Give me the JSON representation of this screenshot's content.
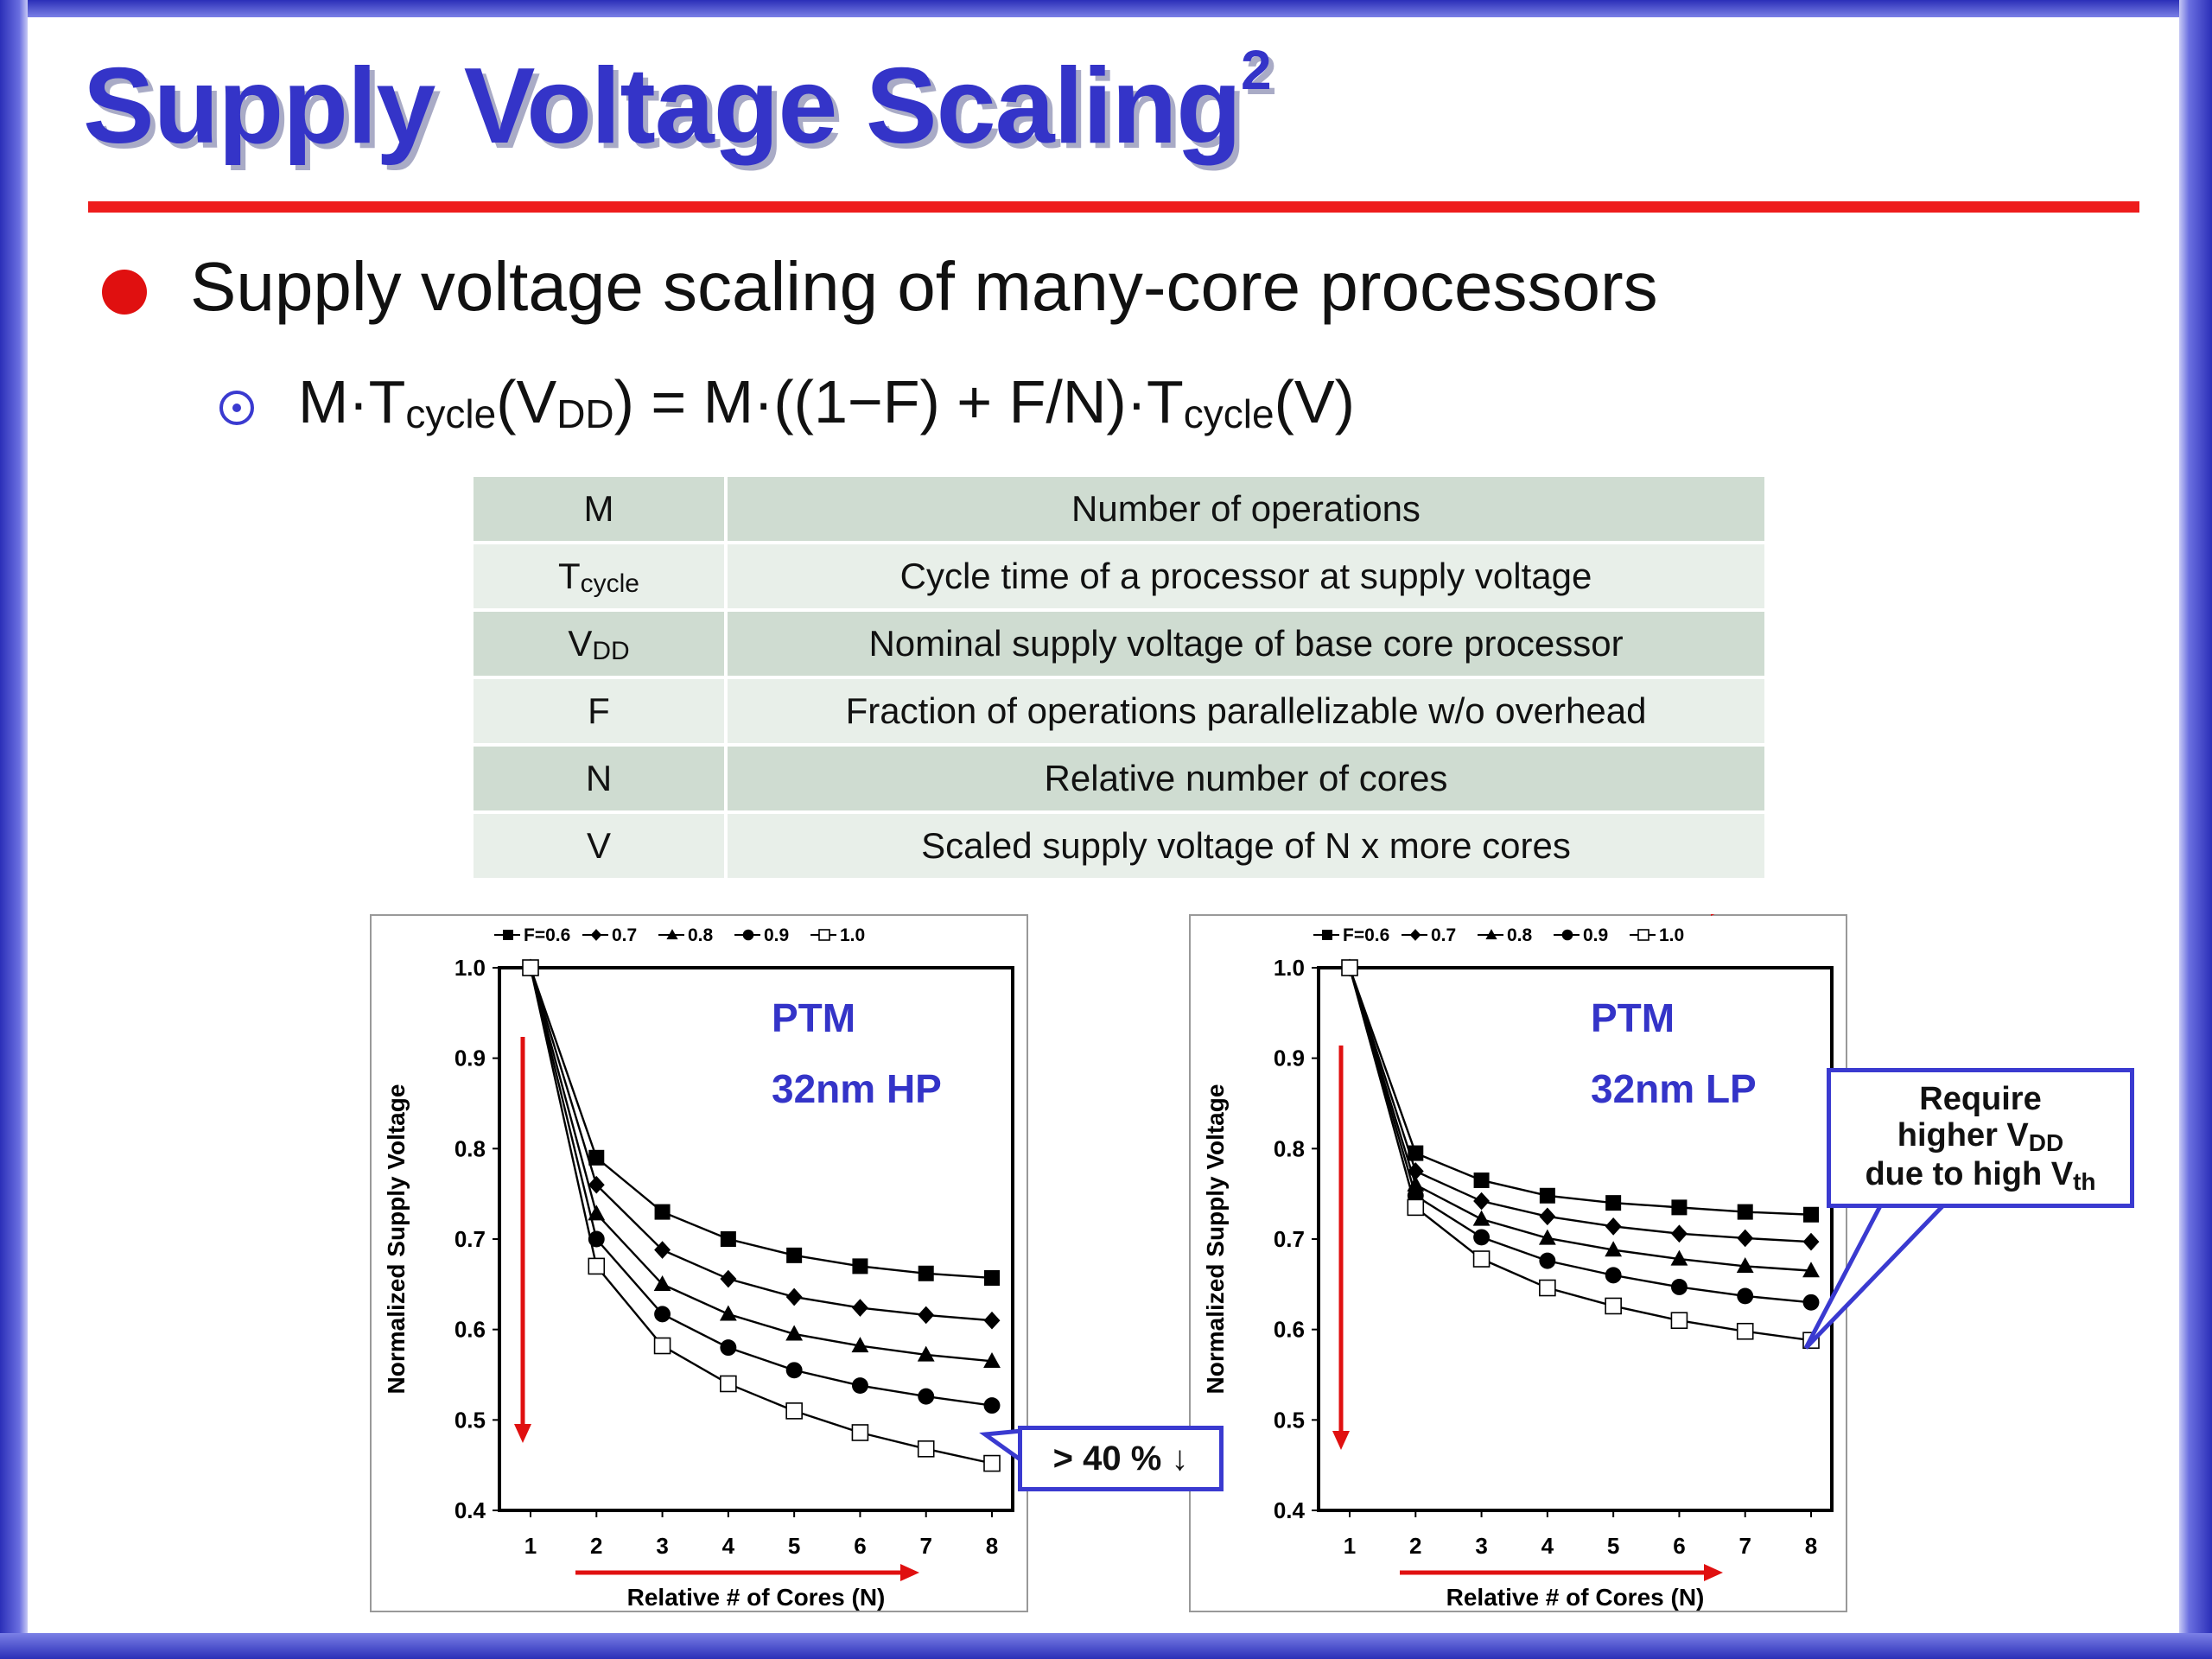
{
  "slide": {
    "title": "Supply Voltage Scaling",
    "title_sup": "2",
    "bullet": "Supply voltage scaling of many-core processors",
    "formula": {
      "a": "M·T",
      "a_sub": "cycle",
      "b": "(V",
      "b_sub": "DD",
      "c": ") = M·((1−F) + F/N)·T",
      "c_sub": "cycle",
      "d": "(V)"
    }
  },
  "definitions": [
    {
      "symbol": "M",
      "symbol_sub": "",
      "meaning": "Number of operations"
    },
    {
      "symbol": "T",
      "symbol_sub": "cycle",
      "meaning": "Cycle time of a processor at supply voltage"
    },
    {
      "symbol": "V",
      "symbol_sub": "DD",
      "meaning": "Nominal supply voltage of base core processor"
    },
    {
      "symbol": "F",
      "symbol_sub": "",
      "meaning": "Fraction of operations parallelizable w/o overhead"
    },
    {
      "symbol": "N",
      "symbol_sub": "",
      "meaning": "Relative number of cores"
    },
    {
      "symbol": "V",
      "symbol_sub": "",
      "meaning": "Scaled supply voltage of N x more cores"
    }
  ],
  "annotations": {
    "drop_label": "> 40 % ↓",
    "require_line1": "Require",
    "require_line2a": "higher V",
    "require_line2_sub": "DD",
    "require_line3a": "due to high V",
    "require_line3_sub": "th"
  },
  "colors": {
    "title": "#3434c8",
    "rule": "#ee1c1c",
    "arrow": "#e01010",
    "callout": "#3a3ad0",
    "table_dark": "#cfdcd1",
    "table_light": "#e8efe9"
  },
  "chart_data": [
    {
      "type": "line",
      "title": "",
      "labels": [
        "PTM",
        "32nm HP"
      ],
      "xlabel": "Relative # of Cores (N)",
      "ylabel": "Normalized Supply Voltage",
      "x": [
        1,
        2,
        3,
        4,
        5,
        6,
        7,
        8
      ],
      "xticks": [
        "1",
        "2",
        "3",
        "4",
        "5",
        "6",
        "7",
        "8"
      ],
      "ylim": [
        0.4,
        1.0
      ],
      "yticks": [
        "0.4",
        "0.5",
        "0.6",
        "0.7",
        "0.8",
        "0.9",
        "1.0"
      ],
      "legend_position": "top",
      "series": [
        {
          "name": "F=0.6",
          "marker": "square-filled",
          "values": [
            1.0,
            0.79,
            0.73,
            0.7,
            0.682,
            0.67,
            0.662,
            0.657
          ]
        },
        {
          "name": "0.7",
          "marker": "diamond-filled",
          "values": [
            1.0,
            0.76,
            0.688,
            0.656,
            0.636,
            0.624,
            0.616,
            0.61
          ]
        },
        {
          "name": "0.8",
          "marker": "triangle-filled",
          "values": [
            1.0,
            0.728,
            0.65,
            0.617,
            0.595,
            0.582,
            0.572,
            0.565
          ]
        },
        {
          "name": "0.9",
          "marker": "circle-filled",
          "values": [
            1.0,
            0.7,
            0.617,
            0.58,
            0.555,
            0.538,
            0.526,
            0.516
          ]
        },
        {
          "name": "1.0",
          "marker": "square-open",
          "values": [
            1.0,
            0.67,
            0.582,
            0.54,
            0.51,
            0.486,
            0.468,
            0.452
          ]
        }
      ]
    },
    {
      "type": "line",
      "title": "",
      "labels": [
        "PTM",
        "32nm LP"
      ],
      "xlabel": "Relative # of Cores (N)",
      "ylabel": "Normalized Supply Voltage",
      "x": [
        1,
        2,
        3,
        4,
        5,
        6,
        7,
        8
      ],
      "xticks": [
        "1",
        "2",
        "3",
        "4",
        "5",
        "6",
        "7",
        "8"
      ],
      "ylim": [
        0.4,
        1.0
      ],
      "yticks": [
        "0.4",
        "0.5",
        "0.6",
        "0.7",
        "0.8",
        "0.9",
        "1.0"
      ],
      "legend_position": "top",
      "series": [
        {
          "name": "F=0.6",
          "marker": "square-filled",
          "values": [
            1.0,
            0.795,
            0.765,
            0.748,
            0.74,
            0.735,
            0.73,
            0.727
          ]
        },
        {
          "name": "0.7",
          "marker": "diamond-filled",
          "values": [
            1.0,
            0.775,
            0.742,
            0.725,
            0.714,
            0.706,
            0.701,
            0.697
          ]
        },
        {
          "name": "0.8",
          "marker": "triangle-filled",
          "values": [
            1.0,
            0.76,
            0.722,
            0.701,
            0.688,
            0.678,
            0.67,
            0.665
          ]
        },
        {
          "name": "0.9",
          "marker": "circle-filled",
          "values": [
            1.0,
            0.748,
            0.702,
            0.676,
            0.66,
            0.647,
            0.637,
            0.63
          ]
        },
        {
          "name": "1.0",
          "marker": "square-open",
          "values": [
            1.0,
            0.735,
            0.678,
            0.646,
            0.626,
            0.61,
            0.598,
            0.588
          ]
        }
      ]
    }
  ]
}
